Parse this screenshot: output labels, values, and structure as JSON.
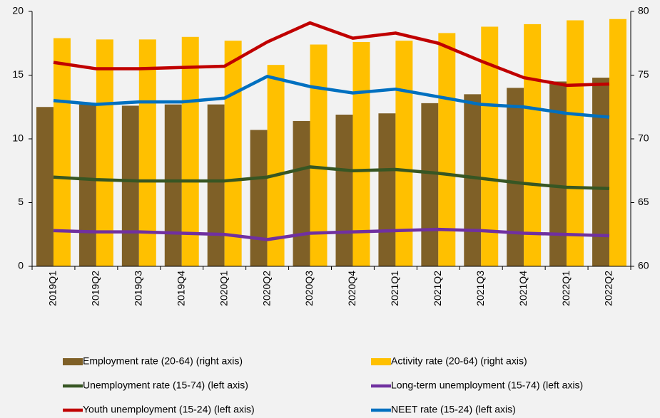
{
  "chart_data": {
    "type": "combo",
    "categories": [
      "2019Q1",
      "2019Q2",
      "2019Q3",
      "2019Q4",
      "2020Q1",
      "2020Q2",
      "2020Q3",
      "2020Q4",
      "2021Q1",
      "2021Q2",
      "2021Q3",
      "2021Q4",
      "2022Q1",
      "2022Q2"
    ],
    "ylim": [
      0,
      20
    ],
    "yticks": [
      0,
      5,
      10,
      15,
      20
    ],
    "y2lim": [
      60,
      80
    ],
    "y2ticks": [
      60,
      65,
      70,
      75,
      80
    ],
    "series": [
      {
        "name": "Employment rate (20-64) (right axis)",
        "type": "bar",
        "axis": "y2",
        "color": "#7f6027",
        "values": [
          72.5,
          72.7,
          72.6,
          72.7,
          72.7,
          70.7,
          71.4,
          71.9,
          72.0,
          72.8,
          73.5,
          74.0,
          74.5,
          74.8
        ]
      },
      {
        "name": "Activity rate (20-64) (right axis)",
        "type": "bar",
        "axis": "y2",
        "color": "#ffc000",
        "values": [
          77.9,
          77.8,
          77.8,
          78.0,
          77.7,
          75.8,
          77.4,
          77.6,
          77.7,
          78.3,
          78.8,
          79.0,
          79.3,
          79.4
        ]
      },
      {
        "name": "Unemployment rate (15-74) (left axis)",
        "type": "line",
        "color": "#375623",
        "values": [
          7.0,
          6.8,
          6.7,
          6.7,
          6.7,
          7.0,
          7.8,
          7.5,
          7.6,
          7.3,
          6.9,
          6.5,
          6.2,
          6.1
        ]
      },
      {
        "name": "Long-term unemployment (15-74) (left axis)",
        "type": "line",
        "color": "#7030a0",
        "values": [
          2.8,
          2.7,
          2.7,
          2.6,
          2.5,
          2.1,
          2.6,
          2.7,
          2.8,
          2.9,
          2.8,
          2.6,
          2.5,
          2.4
        ]
      },
      {
        "name": "Youth unemployment (15-24) (left axis)",
        "type": "line",
        "color": "#c00000",
        "values": [
          16.0,
          15.5,
          15.5,
          15.6,
          15.7,
          17.6,
          19.1,
          17.9,
          18.3,
          17.5,
          16.1,
          14.8,
          14.2,
          14.3
        ]
      },
      {
        "name": "NEET rate (15-24) (left axis)",
        "type": "line",
        "color": "#0070c0",
        "values": [
          13.0,
          12.7,
          12.9,
          12.9,
          13.2,
          14.9,
          14.1,
          13.6,
          13.9,
          13.3,
          12.7,
          12.5,
          12.0,
          11.7
        ]
      }
    ]
  }
}
